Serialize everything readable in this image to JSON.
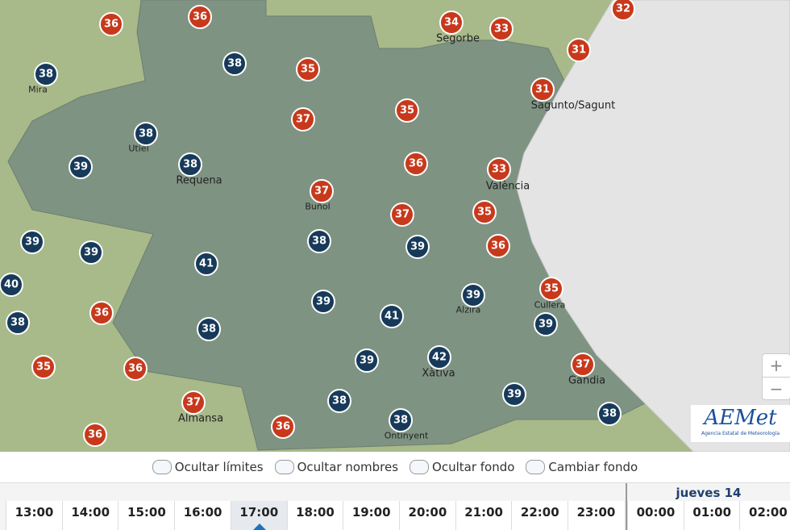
{
  "markers": [
    {
      "value": 36,
      "color": "#c8391c"
    },
    {
      "value": 36,
      "color": "#c8391c"
    },
    {
      "value": 34,
      "color": "#c8391c"
    },
    {
      "value": 33,
      "color": "#c8391c"
    },
    {
      "value": 32,
      "color": "#c8391c"
    },
    {
      "value": 31,
      "color": "#c8391c"
    },
    {
      "value": 35,
      "color": "#c8391c"
    },
    {
      "value": 31,
      "color": "#c8391c"
    },
    {
      "value": 35,
      "color": "#c8391c"
    },
    {
      "value": 37,
      "color": "#c8391c"
    },
    {
      "value": 36,
      "color": "#c8391c"
    },
    {
      "value": 33,
      "color": "#c8391c"
    },
    {
      "value": 37,
      "color": "#c8391c"
    },
    {
      "value": 37,
      "color": "#c8391c"
    },
    {
      "value": 35,
      "color": "#c8391c"
    },
    {
      "value": 36,
      "color": "#c8391c"
    },
    {
      "value": 35,
      "color": "#c8391c"
    },
    {
      "value": 36,
      "color": "#c8391c"
    },
    {
      "value": 35,
      "color": "#c8391c"
    },
    {
      "value": 36,
      "color": "#c8391c"
    },
    {
      "value": 37,
      "color": "#c8391c"
    },
    {
      "value": 37,
      "color": "#c8391c"
    },
    {
      "value": 36,
      "color": "#c8391c"
    },
    {
      "value": 36,
      "color": "#c8391c"
    },
    {
      "value": 38,
      "color": "#173a5a"
    },
    {
      "value": 38,
      "color": "#173a5a"
    },
    {
      "value": 38,
      "color": "#173a5a"
    },
    {
      "value": 39,
      "color": "#173a5a"
    },
    {
      "value": 38,
      "color": "#173a5a"
    },
    {
      "value": 39,
      "color": "#173a5a"
    },
    {
      "value": 39,
      "color": "#173a5a"
    },
    {
      "value": 41,
      "color": "#173a5a"
    },
    {
      "value": 38,
      "color": "#173a5a"
    },
    {
      "value": 39,
      "color": "#173a5a"
    },
    {
      "value": 40,
      "color": "#173a5a"
    },
    {
      "value": 38,
      "color": "#173a5a"
    },
    {
      "value": 38,
      "color": "#173a5a"
    },
    {
      "value": 39,
      "color": "#173a5a"
    },
    {
      "value": 41,
      "color": "#173a5a"
    },
    {
      "value": 39,
      "color": "#173a5a"
    },
    {
      "value": 39,
      "color": "#173a5a"
    },
    {
      "value": 39,
      "color": "#173a5a"
    },
    {
      "value": 42,
      "color": "#173a5a"
    },
    {
      "value": 38,
      "color": "#173a5a"
    },
    {
      "value": 38,
      "color": "#173a5a"
    },
    {
      "value": 39,
      "color": "#173a5a"
    },
    {
      "value": 38,
      "color": "#173a5a"
    }
  ],
  "places": [
    "Mira",
    "Segorbe",
    "Sagunto/Sagunt",
    "Utiel",
    "Requena",
    "València",
    "Buñol",
    "Alzira",
    "Cullera",
    "Xàtiva",
    "Gandia",
    "Almansa",
    "Ontinyent"
  ],
  "zoom": {
    "in": "+",
    "out": "−"
  },
  "logo": {
    "title": "AEMet",
    "subtitle": "Agencia Estatal de Meteorología"
  },
  "options": [
    "Ocultar límites",
    "Ocultar nombres",
    "Ocultar fondo",
    "Cambiar fondo"
  ],
  "timeline": {
    "hours": [
      "13:00",
      "14:00",
      "15:00",
      "16:00",
      "17:00",
      "18:00",
      "19:00",
      "20:00",
      "21:00",
      "22:00",
      "23:00"
    ],
    "day": "jueves 14",
    "next_hours": [
      "00:00",
      "01:00",
      "02:00"
    ],
    "selected": "17:00"
  }
}
